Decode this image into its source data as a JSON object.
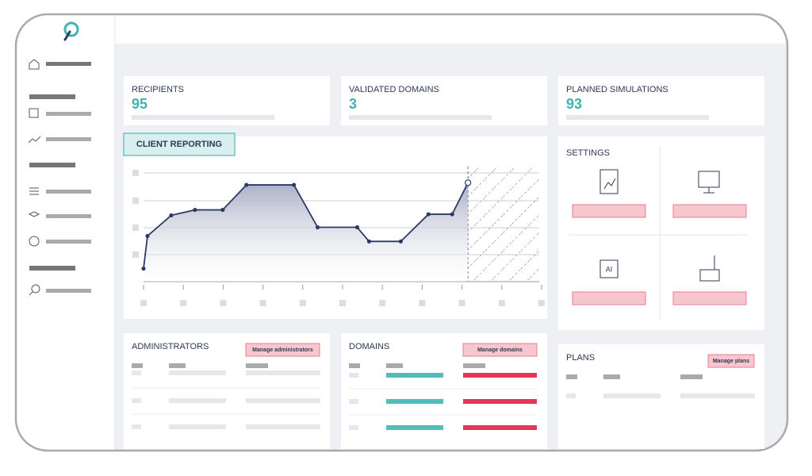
{
  "cards": [
    {
      "title": "RECIPIENTS",
      "value": "95"
    },
    {
      "title": "VALIDATED DOMAINS",
      "value": "3"
    },
    {
      "title": "PLANNED SIMULATIONS",
      "value": "93"
    }
  ],
  "chart_data": {
    "type": "line",
    "title": "CLIENT REPORTING",
    "x": [
      0,
      1,
      7,
      13,
      20,
      26,
      38,
      44,
      54,
      57,
      65,
      72,
      78,
      82
    ],
    "values": [
      12,
      42,
      61,
      66,
      66,
      89,
      89,
      50,
      50,
      37,
      37,
      62,
      62,
      91
    ],
    "xlim": [
      0,
      100
    ],
    "ylim": [
      0,
      100
    ],
    "color": "#2d3a66"
  },
  "settings": {
    "title": "SETTINGS"
  },
  "panels": [
    {
      "title": "ADMINISTRATORS",
      "button": "Manage administrators"
    },
    {
      "title": "DOMAINS",
      "button": "Manage domains"
    },
    {
      "title": "PLANS",
      "button": "Manage plans"
    }
  ]
}
